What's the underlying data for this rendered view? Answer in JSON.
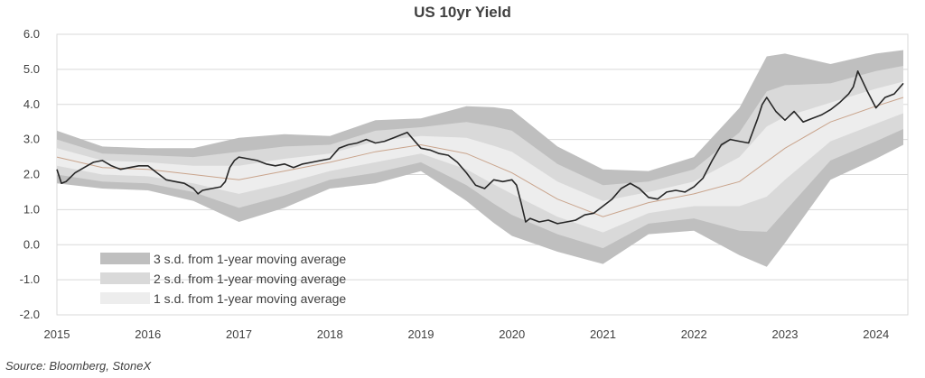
{
  "chart_data": {
    "type": "area",
    "title": "US 10yr Yield",
    "xlabel": "",
    "ylabel": "",
    "xlim": [
      2015.0,
      2024.35
    ],
    "ylim": [
      -2.0,
      6.0
    ],
    "y_ticks": [
      "6.0",
      "5.0",
      "4.0",
      "3.0",
      "2.0",
      "1.0",
      "0.0",
      "-1.0",
      "-2.0"
    ],
    "x_ticks": [
      "2015",
      "2016",
      "2017",
      "2018",
      "2019",
      "2020",
      "2021",
      "2022",
      "2023",
      "2024"
    ],
    "grid": "horizontal",
    "legend_position": "bottom-left",
    "legend": [
      {
        "label": "3 s.d. from 1-year moving average",
        "color": "#bfbfbf"
      },
      {
        "label": "2 s.d. from 1-year moving average",
        "color": "#d9d9d9"
      },
      {
        "label": "1 s.d. from 1-year moving average",
        "color": "#ededed"
      }
    ],
    "colors": {
      "yield_line": "#262626",
      "moving_average": "#c9a48c"
    },
    "series": [
      {
        "role": "yield",
        "x": [
          2015.0,
          2015.05,
          2015.1,
          2015.2,
          2015.3,
          2015.4,
          2015.5,
          2015.6,
          2015.7,
          2015.8,
          2015.9,
          2016.0,
          2016.1,
          2016.2,
          2016.3,
          2016.4,
          2016.5,
          2016.55,
          2016.6,
          2016.7,
          2016.8,
          2016.85,
          2016.9,
          2016.95,
          2017.0,
          2017.1,
          2017.2,
          2017.3,
          2017.4,
          2017.5,
          2017.6,
          2017.7,
          2017.8,
          2017.9,
          2018.0,
          2018.1,
          2018.2,
          2018.3,
          2018.4,
          2018.5,
          2018.6,
          2018.7,
          2018.8,
          2018.85,
          2018.9,
          2019.0,
          2019.1,
          2019.2,
          2019.3,
          2019.4,
          2019.5,
          2019.6,
          2019.7,
          2019.8,
          2019.9,
          2020.0,
          2020.05,
          2020.1,
          2020.15,
          2020.2,
          2020.3,
          2020.4,
          2020.5,
          2020.6,
          2020.7,
          2020.8,
          2020.9,
          2021.0,
          2021.1,
          2021.2,
          2021.3,
          2021.4,
          2021.5,
          2021.6,
          2021.7,
          2021.8,
          2021.9,
          2022.0,
          2022.1,
          2022.2,
          2022.3,
          2022.4,
          2022.5,
          2022.6,
          2022.7,
          2022.75,
          2022.8,
          2022.9,
          2023.0,
          2023.1,
          2023.2,
          2023.3,
          2023.4,
          2023.5,
          2023.6,
          2023.7,
          2023.75,
          2023.8,
          2023.9,
          2024.0,
          2024.1,
          2024.2,
          2024.3
        ],
        "values": [
          2.15,
          1.75,
          1.8,
          2.05,
          2.2,
          2.35,
          2.4,
          2.25,
          2.15,
          2.2,
          2.25,
          2.25,
          2.05,
          1.85,
          1.8,
          1.75,
          1.6,
          1.45,
          1.55,
          1.6,
          1.65,
          1.8,
          2.2,
          2.4,
          2.5,
          2.45,
          2.4,
          2.3,
          2.25,
          2.3,
          2.2,
          2.3,
          2.35,
          2.4,
          2.45,
          2.75,
          2.85,
          2.9,
          3.0,
          2.9,
          2.95,
          3.05,
          3.15,
          3.2,
          3.05,
          2.75,
          2.7,
          2.6,
          2.55,
          2.35,
          2.05,
          1.7,
          1.6,
          1.85,
          1.8,
          1.85,
          1.7,
          1.2,
          0.65,
          0.75,
          0.65,
          0.7,
          0.6,
          0.65,
          0.7,
          0.85,
          0.9,
          1.1,
          1.3,
          1.6,
          1.75,
          1.6,
          1.35,
          1.3,
          1.5,
          1.55,
          1.5,
          1.65,
          1.9,
          2.4,
          2.85,
          3.0,
          2.95,
          2.9,
          3.6,
          4.0,
          4.2,
          3.8,
          3.55,
          3.8,
          3.5,
          3.6,
          3.7,
          3.85,
          4.05,
          4.3,
          4.5,
          4.95,
          4.4,
          3.9,
          4.2,
          4.3,
          4.6
        ]
      },
      {
        "role": "moving_average",
        "x": [
          2015.0,
          2015.5,
          2016.0,
          2016.5,
          2017.0,
          2017.5,
          2018.0,
          2018.5,
          2019.0,
          2019.5,
          2020.0,
          2020.5,
          2021.0,
          2021.5,
          2022.0,
          2022.5,
          2023.0,
          2023.5,
          2024.0,
          2024.3
        ],
        "values": [
          2.5,
          2.2,
          2.15,
          2.0,
          1.85,
          2.1,
          2.35,
          2.65,
          2.85,
          2.6,
          2.05,
          1.3,
          0.8,
          1.2,
          1.45,
          1.8,
          2.75,
          3.5,
          3.95,
          4.2
        ]
      }
    ],
    "bands_x": [
      2015.0,
      2015.5,
      2016.0,
      2016.5,
      2017.0,
      2017.5,
      2018.0,
      2018.5,
      2019.0,
      2019.5,
      2019.8,
      2020.0,
      2020.5,
      2021.0,
      2021.5,
      2022.0,
      2022.5,
      2022.8,
      2023.0,
      2023.5,
      2024.0,
      2024.3
    ],
    "band_half_widths": {
      "1sd": [
        0.25,
        0.2,
        0.2,
        0.25,
        0.4,
        0.35,
        0.25,
        0.3,
        0.25,
        0.45,
        0.55,
        0.6,
        0.5,
        0.45,
        0.3,
        0.35,
        0.7,
        1.0,
        0.9,
        0.55,
        0.5,
        0.45
      ],
      "2sd": [
        0.5,
        0.4,
        0.4,
        0.5,
        0.8,
        0.7,
        0.5,
        0.6,
        0.5,
        0.9,
        1.1,
        1.2,
        1.0,
        0.9,
        0.6,
        0.7,
        1.4,
        2.0,
        1.8,
        1.1,
        1.0,
        0.9
      ],
      "3sd": [
        0.75,
        0.6,
        0.6,
        0.75,
        1.2,
        1.05,
        0.75,
        0.9,
        0.75,
        1.35,
        1.65,
        1.8,
        1.5,
        1.35,
        0.9,
        1.05,
        2.1,
        3.0,
        2.7,
        1.65,
        1.5,
        1.35
      ]
    },
    "source": "Source: Bloomberg, StoneX"
  }
}
